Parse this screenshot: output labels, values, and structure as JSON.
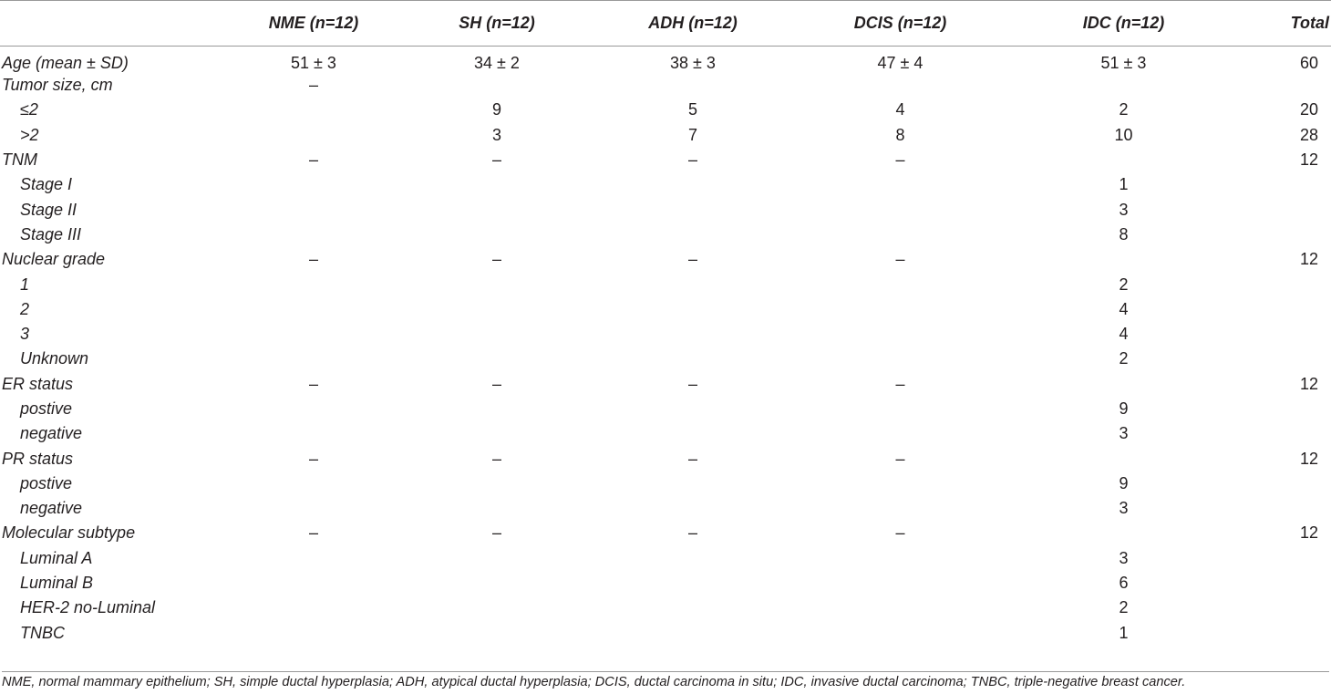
{
  "table": {
    "headers": [
      "",
      "NME (n=12)",
      "SH (n=12)",
      "ADH (n=12)",
      "DCIS (n=12)",
      "IDC (n=12)",
      "Total"
    ],
    "rows": [
      {
        "label": "Age (mean ± SD)",
        "sub": false,
        "values": [
          "51 ± 3",
          "34 ± 2",
          "38 ± 3",
          "47 ± 4",
          "51 ± 3",
          "60"
        ]
      },
      {
        "label": "Tumor size, cm",
        "sub": false,
        "values": [
          "–",
          "",
          "",
          "",
          "",
          ""
        ]
      },
      {
        "label": "≤2",
        "sub": true,
        "values": [
          "",
          "9",
          "5",
          "4",
          "2",
          "20"
        ]
      },
      {
        "label": ">2",
        "sub": true,
        "values": [
          "",
          "3",
          "7",
          "8",
          "10",
          "28"
        ]
      },
      {
        "label": "TNM",
        "sub": false,
        "values": [
          "–",
          "–",
          "–",
          "–",
          "",
          "12"
        ]
      },
      {
        "label": "Stage I",
        "sub": true,
        "values": [
          "",
          "",
          "",
          "",
          "1",
          ""
        ]
      },
      {
        "label": "Stage II",
        "sub": true,
        "values": [
          "",
          "",
          "",
          "",
          "3",
          ""
        ]
      },
      {
        "label": "Stage III",
        "sub": true,
        "values": [
          "",
          "",
          "",
          "",
          "8",
          ""
        ]
      },
      {
        "label": "Nuclear grade",
        "sub": false,
        "values": [
          "–",
          "–",
          "–",
          "–",
          "",
          "12"
        ]
      },
      {
        "label": "1",
        "sub": true,
        "values": [
          "",
          "",
          "",
          "",
          "2",
          ""
        ]
      },
      {
        "label": "2",
        "sub": true,
        "values": [
          "",
          "",
          "",
          "",
          "4",
          ""
        ]
      },
      {
        "label": "3",
        "sub": true,
        "values": [
          "",
          "",
          "",
          "",
          "4",
          ""
        ]
      },
      {
        "label": "Unknown",
        "sub": true,
        "values": [
          "",
          "",
          "",
          "",
          "2",
          ""
        ]
      },
      {
        "label": "ER status",
        "sub": false,
        "values": [
          "–",
          "–",
          "–",
          "–",
          "",
          "12"
        ]
      },
      {
        "label": "postive",
        "sub": true,
        "values": [
          "",
          "",
          "",
          "",
          "9",
          ""
        ]
      },
      {
        "label": "negative",
        "sub": true,
        "values": [
          "",
          "",
          "",
          "",
          "3",
          ""
        ]
      },
      {
        "label": "PR status",
        "sub": false,
        "values": [
          "–",
          "–",
          "–",
          "–",
          "",
          "12"
        ]
      },
      {
        "label": "postive",
        "sub": true,
        "values": [
          "",
          "",
          "",
          "",
          "9",
          ""
        ]
      },
      {
        "label": "negative",
        "sub": true,
        "values": [
          "",
          "",
          "",
          "",
          "3",
          ""
        ]
      },
      {
        "label": "Molecular subtype",
        "sub": false,
        "values": [
          "–",
          "–",
          "–",
          "–",
          "",
          "12"
        ]
      },
      {
        "label": "Luminal A",
        "sub": true,
        "values": [
          "",
          "",
          "",
          "",
          "3",
          ""
        ]
      },
      {
        "label": "Luminal B",
        "sub": true,
        "values": [
          "",
          "",
          "",
          "",
          "6",
          ""
        ]
      },
      {
        "label": "HER-2 no-Luminal",
        "sub": true,
        "values": [
          "",
          "",
          "",
          "",
          "2",
          ""
        ]
      },
      {
        "label": "TNBC",
        "sub": true,
        "values": [
          "",
          "",
          "",
          "",
          "1",
          ""
        ]
      }
    ]
  },
  "footnote": "NME, normal mammary epithelium; SH, simple ductal hyperplasia; ADH, atypical ductal hyperplasia; DCIS, ductal carcinoma in situ; IDC, invasive ductal carcinoma; TNBC, triple-negative breast cancer."
}
